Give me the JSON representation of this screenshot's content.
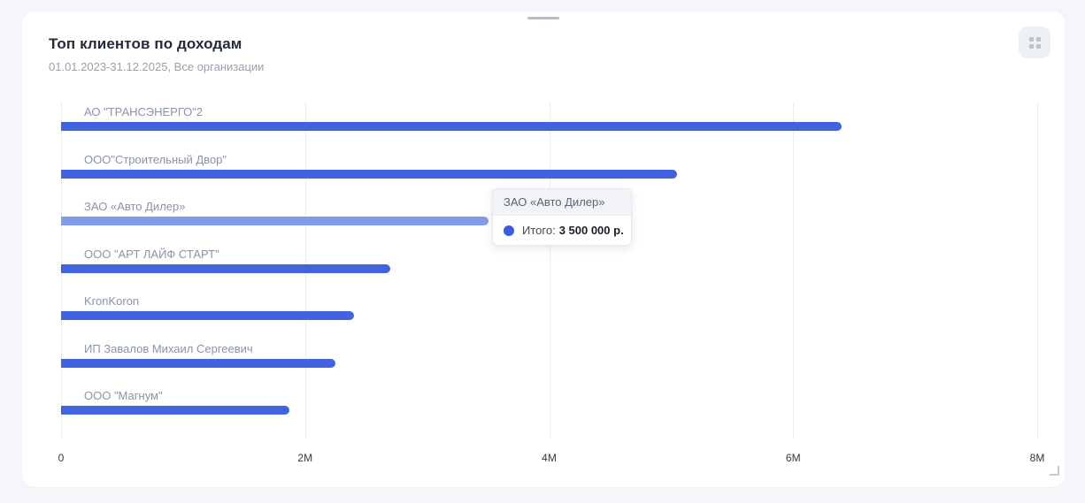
{
  "header": {
    "title": "Топ клиентов по доходам",
    "subtitle": "01.01.2023-31.12.2025, Все организации"
  },
  "widget_controls": {
    "drag_handle_icon": "horizontal-bar",
    "move_button_icon": "grid-2x2-dots",
    "resize_icon": "corner-bracket"
  },
  "chart_data": {
    "type": "bar",
    "orientation": "horizontal",
    "title": "Топ клиентов по доходам",
    "xlabel": "",
    "ylabel": "",
    "categories": [
      "АО \"ТРАНСЭНЕРГО\"2",
      "ООО\"Строительный Двор\"",
      "ЗАО «Авто Дилер»",
      "ООО \"АРТ ЛАЙФ СТАРТ\"",
      "KronKoron",
      "ИП Завалов Михаил Сергеевич",
      "ООО \"Магнум\""
    ],
    "values": [
      6400000,
      5050000,
      3500000,
      2700000,
      2400000,
      2250000,
      1870000
    ],
    "series_name": "Итого",
    "highlight_index": 2,
    "xlim": [
      0,
      8000000
    ],
    "x_tick_values": [
      0,
      2000000,
      4000000,
      6000000,
      8000000
    ],
    "x_tick_labels": [
      "0",
      "2M",
      "4M",
      "6M",
      "8M"
    ],
    "grid": true,
    "legend": false,
    "bar_color": "#4163DF",
    "bar_highlight_color": "#8299EC"
  },
  "tooltip": {
    "title": "ЗАО «Авто Дилер»",
    "series_label": "Итого:",
    "value": "3 500 000 р.",
    "marker_color": "#3C5CE0"
  },
  "colors": {
    "page_background": "#F5F6FA",
    "card_background": "#FFFFFF",
    "gridline": "#E9EBEF",
    "category_label": "#8B93A8",
    "axis_label": "#33363D"
  }
}
